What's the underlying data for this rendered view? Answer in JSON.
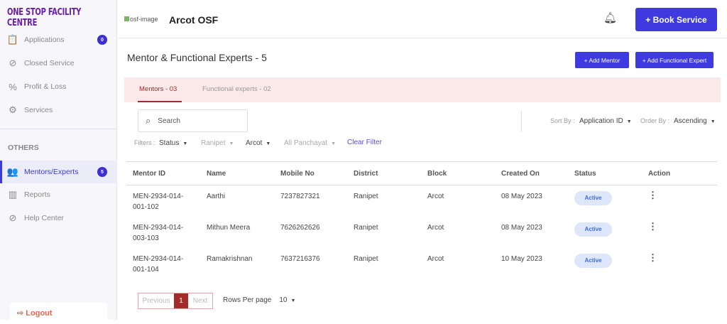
{
  "sidebar": {
    "brand": "ONE STOP FACILITY CENTRE",
    "items": [
      {
        "label": "Applications",
        "badge": "0"
      },
      {
        "label": "Closed Service"
      },
      {
        "label": "Profit & Loss"
      },
      {
        "label": "Services"
      }
    ],
    "section": "OTHERS",
    "others": [
      {
        "label": "Mentors/Experts",
        "badge": "5"
      },
      {
        "label": "Reports"
      },
      {
        "label": "Help Center"
      }
    ],
    "logout": "Logout"
  },
  "header": {
    "logo_alt": "osf-image",
    "title": "Arcot OSF",
    "book_service": "+ Book Service"
  },
  "main": {
    "title": "Mentor & Functional Experts -  5",
    "add_mentor": "+ Add Mentor",
    "add_expert": "+ Add Functional Expert",
    "tabs": [
      {
        "label": "Mentors - 03"
      },
      {
        "label": "Functional experts - 02"
      }
    ],
    "search_placeholder": "Search",
    "sort_label": "Sort By :",
    "sort_value": "Application ID",
    "order_label": "Order By :",
    "order_value": "Ascending",
    "filters_label": "Filters :",
    "filters": [
      "Status",
      "Ranipet",
      "Arcot",
      "All Panchayat"
    ],
    "clear_filter": "Clear Filter",
    "columns": [
      "Mentor ID",
      "Name",
      "Mobile No",
      "District",
      "Block",
      "Created On",
      "Status",
      "Action"
    ],
    "rows": [
      {
        "id": "MEN-2934-014-001-102",
        "name": "Aarthi",
        "mobile": "7237827321",
        "district": "Ranipet",
        "block": "Arcot",
        "created": "08 May 2023",
        "status": "Active"
      },
      {
        "id": "MEN-2934-014-003-103",
        "name": "Mithun Meera",
        "mobile": "7626262626",
        "district": "Ranipet",
        "block": "Arcot",
        "created": "08 May 2023",
        "status": "Active"
      },
      {
        "id": "MEN-2934-014-001-104",
        "name": "Ramakrishnan",
        "mobile": "7637216376",
        "district": "Ranipet",
        "block": "Arcot",
        "created": "10 May 2023",
        "status": "Active"
      }
    ],
    "pagination": {
      "previous": "Previous",
      "page": "1",
      "next": "Next",
      "rows_label": "Rows Per page",
      "rows_value": "10"
    }
  },
  "colors": {
    "primary": "#3f3adf",
    "accent": "#a52a2a",
    "brand": "#6a1fa8"
  }
}
